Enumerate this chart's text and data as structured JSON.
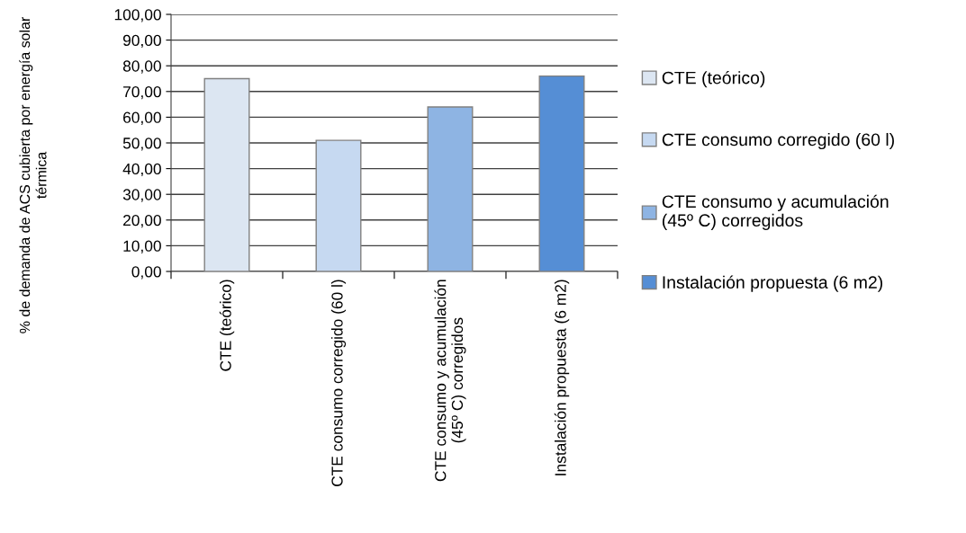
{
  "chart_data": {
    "type": "bar",
    "ylabel": "% de demanda de ACS cubierta por energía solar\ntérmica",
    "categories": [
      "CTE (teórico)",
      "CTE consumo corregido (60 l)",
      "CTE consumo y acumulación\n(45º C) corregidos",
      "Instalación propuesta (6 m2)"
    ],
    "series": [
      {
        "name": "CTE (teórico)",
        "color": "#dce6f2",
        "values": [
          75,
          null,
          null,
          null
        ]
      },
      {
        "name": "CTE consumo corregido (60 l)",
        "color": "#c6d9f1",
        "values": [
          null,
          51,
          null,
          null
        ]
      },
      {
        "name": "CTE consumo y acumulación\n(45º C) corregidos",
        "color": "#8eb4e3",
        "values": [
          null,
          null,
          64,
          null
        ]
      },
      {
        "name": "Instalación propuesta (6 m2)",
        "color": "#558ed5",
        "values": [
          null,
          null,
          null,
          76
        ]
      }
    ],
    "stacked": true,
    "ylim": [
      0,
      100
    ],
    "yticks": [
      {
        "value": 0,
        "label": "0,00"
      },
      {
        "value": 10,
        "label": "10,00"
      },
      {
        "value": 20,
        "label": "20,00"
      },
      {
        "value": 30,
        "label": "30,00"
      },
      {
        "value": 40,
        "label": "40,00"
      },
      {
        "value": 50,
        "label": "50,00"
      },
      {
        "value": 60,
        "label": "60,00"
      },
      {
        "value": 70,
        "label": "70,00"
      },
      {
        "value": 80,
        "label": "80,00"
      },
      {
        "value": 90,
        "label": "90,00"
      },
      {
        "value": 100,
        "label": "100,00"
      }
    ],
    "grid": "y",
    "legend": "right"
  }
}
